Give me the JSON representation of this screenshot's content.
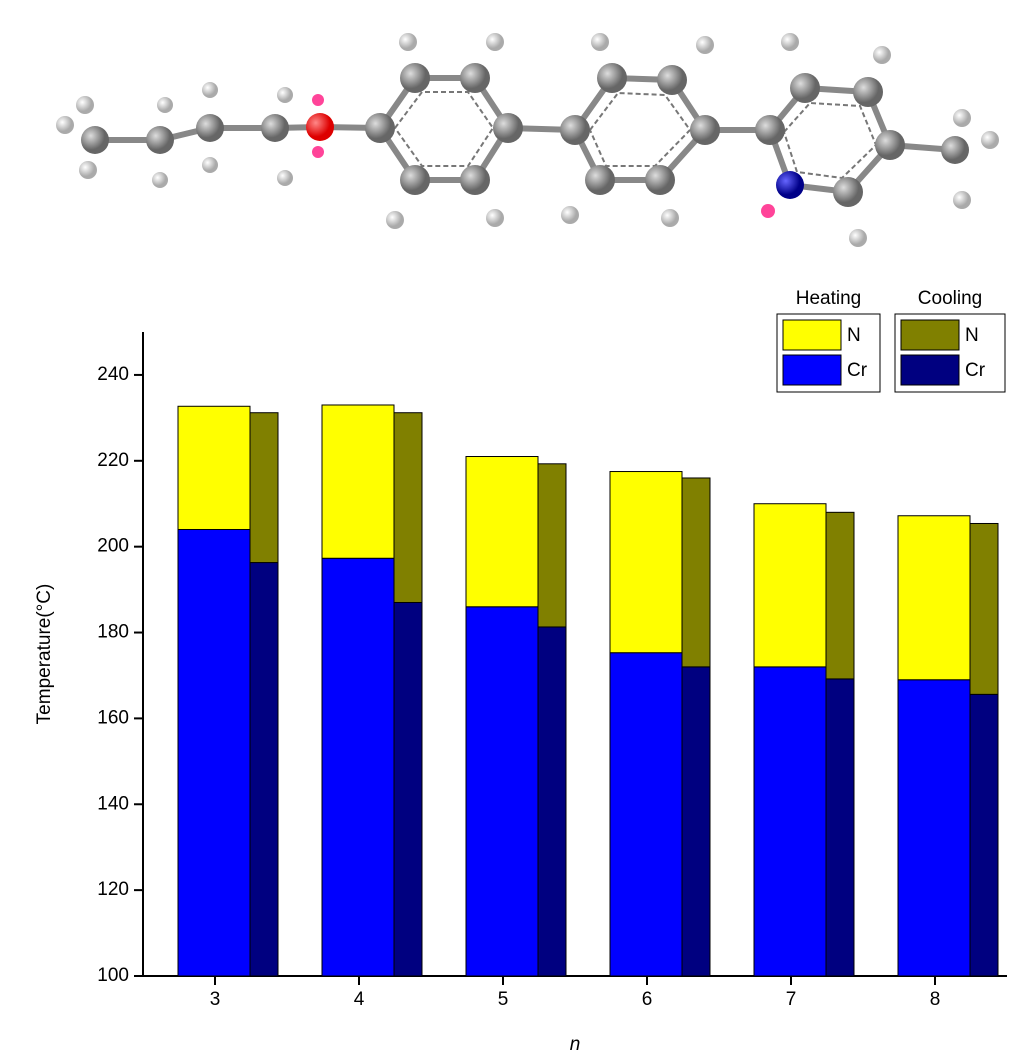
{
  "chart_data": {
    "type": "bar",
    "x_label": "n",
    "y_label": "Temperature(°C)",
    "categories": [
      "3",
      "4",
      "5",
      "6",
      "7",
      "8"
    ],
    "ylim": [
      100,
      250
    ],
    "yticks": [
      100,
      120,
      140,
      160,
      180,
      200,
      220,
      240
    ],
    "groups": [
      {
        "name": "Heating",
        "series": [
          {
            "name": "Cr",
            "color": "#0000ff",
            "values": [
              204,
              197.3,
              186,
              175.3,
              172,
              169
            ]
          },
          {
            "name": "N",
            "color": "#ffff00",
            "values": [
              28.7,
              35.7,
              35,
              42.2,
              38,
              38.2
            ]
          }
        ]
      },
      {
        "name": "Cooling",
        "series": [
          {
            "name": "Cr",
            "color": "#000080",
            "values": [
              196.3,
              187,
              181.3,
              172,
              169.2,
              165.6
            ]
          },
          {
            "name": "N",
            "color": "#808000",
            "values": [
              34.9,
              44.2,
              38,
              44,
              38.8,
              39.8
            ]
          }
        ]
      }
    ]
  }
}
